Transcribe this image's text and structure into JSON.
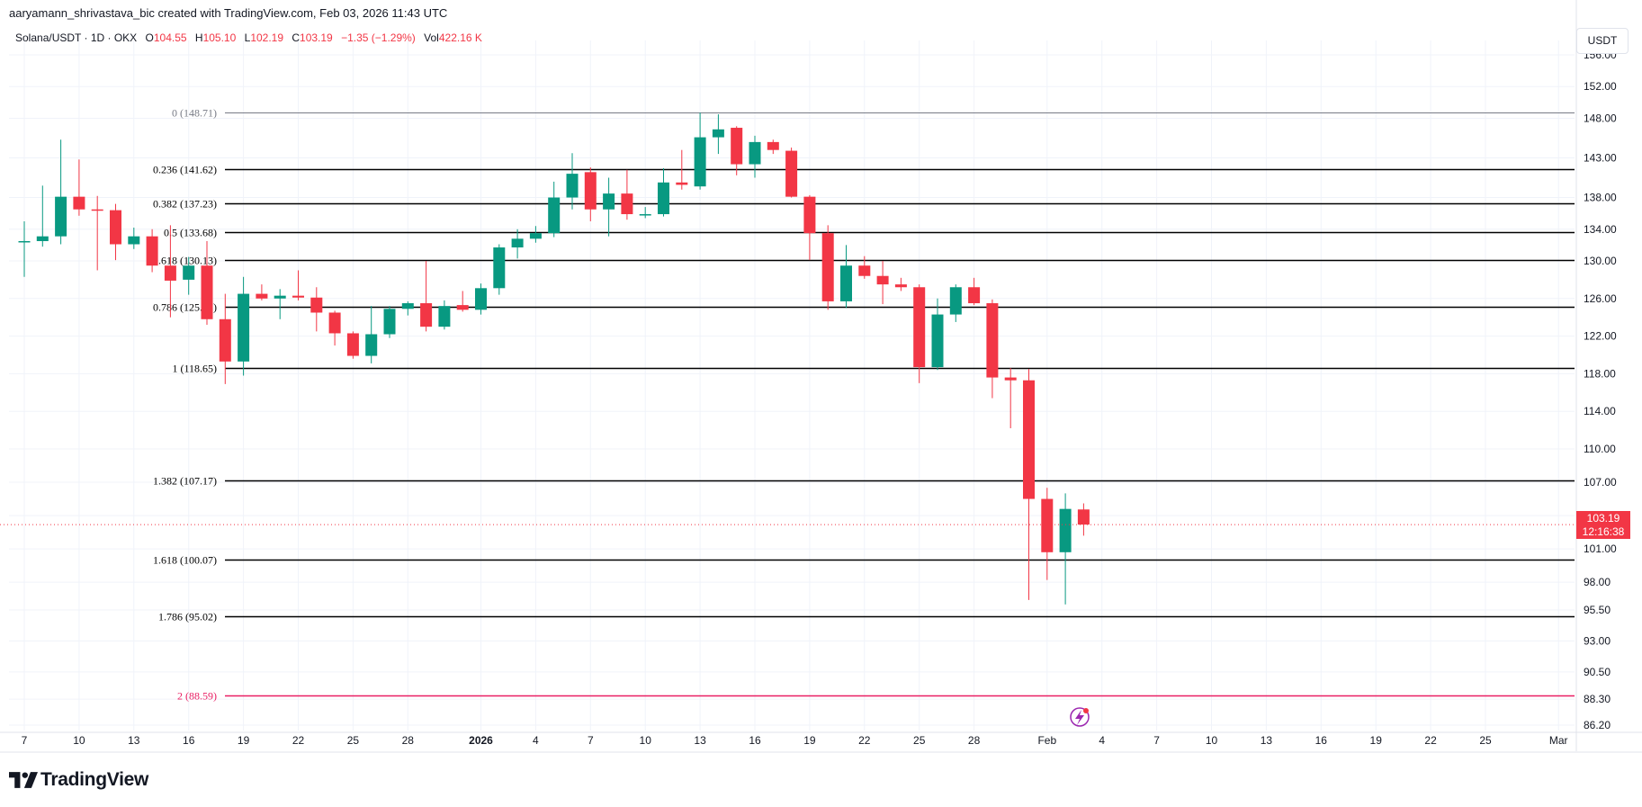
{
  "credit": "aaryamann_shrivastava_bic created with TradingView.com, Feb 03, 2026 11:43 UTC",
  "legend": {
    "symbol": "Solana/USDT · 1D · OKX",
    "o_label": "O",
    "o_value": "104.55",
    "h_label": "H",
    "h_value": "105.10",
    "l_label": "L",
    "l_value": "102.19",
    "c_label": "C",
    "c_value": "103.19",
    "change": "−1.35 (−1.29%)",
    "vol_label": "Vol",
    "vol_value": "422.16 K"
  },
  "currency": "USDT",
  "price_tag": {
    "price": "103.19",
    "countdown": "12:16:38"
  },
  "brand": "TradingView",
  "colors": {
    "up": "#089981",
    "down": "#f23645",
    "fib": "#000000",
    "fib_top": "#787b86",
    "fib_ext": "#e91e63",
    "grid": "#f0f3fa"
  },
  "chart_data": {
    "type": "candlestick",
    "symbol": "Solana/USDT",
    "interval": "1D",
    "y_ticks": [
      "86.20",
      "88.30",
      "90.50",
      "93.00",
      "95.50",
      "98.00",
      "101.00",
      "104.00",
      "107.00",
      "110.00",
      "114.00",
      "118.00",
      "122.00",
      "126.00",
      "130.00",
      "134.00",
      "138.00",
      "143.00",
      "148.00",
      "152.00",
      "156.00"
    ],
    "x_labels": [
      {
        "date": "2025-12-07",
        "label": "7"
      },
      {
        "date": "2025-12-10",
        "label": "10"
      },
      {
        "date": "2025-12-13",
        "label": "13"
      },
      {
        "date": "2025-12-16",
        "label": "16"
      },
      {
        "date": "2025-12-19",
        "label": "19"
      },
      {
        "date": "2025-12-22",
        "label": "22"
      },
      {
        "date": "2025-12-25",
        "label": "25"
      },
      {
        "date": "2025-12-28",
        "label": "28"
      },
      {
        "date": "2026-01-01",
        "label": "2026"
      },
      {
        "date": "2026-01-04",
        "label": "4"
      },
      {
        "date": "2026-01-07",
        "label": "7"
      },
      {
        "date": "2026-01-10",
        "label": "10"
      },
      {
        "date": "2026-01-13",
        "label": "13"
      },
      {
        "date": "2026-01-16",
        "label": "16"
      },
      {
        "date": "2026-01-19",
        "label": "19"
      },
      {
        "date": "2026-01-22",
        "label": "22"
      },
      {
        "date": "2026-01-25",
        "label": "25"
      },
      {
        "date": "2026-01-28",
        "label": "28"
      },
      {
        "date": "2026-02-01",
        "label": "Feb"
      },
      {
        "date": "2026-02-04",
        "label": "4"
      },
      {
        "date": "2026-02-07",
        "label": "7"
      },
      {
        "date": "2026-02-10",
        "label": "10"
      },
      {
        "date": "2026-02-13",
        "label": "13"
      },
      {
        "date": "2026-02-16",
        "label": "16"
      },
      {
        "date": "2026-02-19",
        "label": "19"
      },
      {
        "date": "2026-02-22",
        "label": "22"
      },
      {
        "date": "2026-02-25",
        "label": "25"
      },
      {
        "date": "2026-03-01",
        "label": "Mar"
      }
    ],
    "last_price": 103.19,
    "candles": [
      {
        "date": "2025-12-07",
        "o": 132.4,
        "h": 135.0,
        "l": 128.3,
        "c": 132.5
      },
      {
        "date": "2025-12-08",
        "o": 132.5,
        "h": 139.5,
        "l": 131.8,
        "c": 133.1
      },
      {
        "date": "2025-12-09",
        "o": 133.1,
        "h": 145.3,
        "l": 132.1,
        "c": 138.1
      },
      {
        "date": "2025-12-10",
        "o": 138.1,
        "h": 142.8,
        "l": 135.7,
        "c": 136.5
      },
      {
        "date": "2025-12-11",
        "o": 136.5,
        "h": 138.2,
        "l": 129.0,
        "c": 136.4
      },
      {
        "date": "2025-12-12",
        "o": 136.4,
        "h": 137.2,
        "l": 130.1,
        "c": 132.1
      },
      {
        "date": "2025-12-13",
        "o": 132.1,
        "h": 134.2,
        "l": 131.5,
        "c": 133.1
      },
      {
        "date": "2025-12-14",
        "o": 133.1,
        "h": 134.0,
        "l": 128.8,
        "c": 129.5
      },
      {
        "date": "2025-12-15",
        "o": 129.5,
        "h": 134.5,
        "l": 124.0,
        "c": 127.9
      },
      {
        "date": "2025-12-16",
        "o": 128.0,
        "h": 130.5,
        "l": 126.4,
        "c": 129.5
      },
      {
        "date": "2025-12-17",
        "o": 129.5,
        "h": 132.5,
        "l": 123.2,
        "c": 123.8
      },
      {
        "date": "2025-12-18",
        "o": 123.8,
        "h": 126.5,
        "l": 116.9,
        "c": 119.3
      },
      {
        "date": "2025-12-19",
        "o": 119.3,
        "h": 128.3,
        "l": 117.8,
        "c": 126.5
      },
      {
        "date": "2025-12-20",
        "o": 126.5,
        "h": 127.5,
        "l": 125.8,
        "c": 126.0
      },
      {
        "date": "2025-12-21",
        "o": 126.0,
        "h": 127.0,
        "l": 123.8,
        "c": 126.3
      },
      {
        "date": "2025-12-22",
        "o": 126.3,
        "h": 129.0,
        "l": 125.8,
        "c": 126.1
      },
      {
        "date": "2025-12-23",
        "o": 126.1,
        "h": 127.2,
        "l": 122.5,
        "c": 124.5
      },
      {
        "date": "2025-12-24",
        "o": 124.5,
        "h": 124.7,
        "l": 121.0,
        "c": 122.3
      },
      {
        "date": "2025-12-25",
        "o": 122.3,
        "h": 122.5,
        "l": 119.6,
        "c": 119.9
      },
      {
        "date": "2025-12-26",
        "o": 119.9,
        "h": 125.2,
        "l": 119.1,
        "c": 122.2
      },
      {
        "date": "2025-12-27",
        "o": 122.2,
        "h": 125.2,
        "l": 121.8,
        "c": 124.9
      },
      {
        "date": "2025-12-28",
        "o": 124.9,
        "h": 125.7,
        "l": 124.2,
        "c": 125.5
      },
      {
        "date": "2025-12-29",
        "o": 125.5,
        "h": 130.0,
        "l": 122.5,
        "c": 123.0
      },
      {
        "date": "2025-12-30",
        "o": 123.0,
        "h": 125.8,
        "l": 122.7,
        "c": 125.2
      },
      {
        "date": "2025-12-31",
        "o": 125.3,
        "h": 126.8,
        "l": 124.6,
        "c": 124.8
      },
      {
        "date": "2026-01-01",
        "o": 124.8,
        "h": 127.6,
        "l": 124.3,
        "c": 127.1
      },
      {
        "date": "2026-01-02",
        "o": 127.1,
        "h": 132.1,
        "l": 126.4,
        "c": 131.7
      },
      {
        "date": "2026-01-03",
        "o": 131.7,
        "h": 134.0,
        "l": 130.3,
        "c": 132.8
      },
      {
        "date": "2026-01-04",
        "o": 132.8,
        "h": 134.4,
        "l": 132.3,
        "c": 133.5
      },
      {
        "date": "2026-01-05",
        "o": 133.5,
        "h": 140.0,
        "l": 133.0,
        "c": 138.0
      },
      {
        "date": "2026-01-06",
        "o": 138.0,
        "h": 143.6,
        "l": 136.5,
        "c": 141.0
      },
      {
        "date": "2026-01-07",
        "o": 141.2,
        "h": 141.8,
        "l": 135.0,
        "c": 136.5
      },
      {
        "date": "2026-01-08",
        "o": 136.5,
        "h": 140.5,
        "l": 133.1,
        "c": 138.5
      },
      {
        "date": "2026-01-09",
        "o": 138.5,
        "h": 141.5,
        "l": 135.2,
        "c": 135.9
      },
      {
        "date": "2026-01-10",
        "o": 135.9,
        "h": 136.8,
        "l": 135.4,
        "c": 135.9
      },
      {
        "date": "2026-01-11",
        "o": 135.9,
        "h": 141.7,
        "l": 135.6,
        "c": 139.9
      },
      {
        "date": "2026-01-12",
        "o": 139.9,
        "h": 144.0,
        "l": 139.0,
        "c": 139.6
      },
      {
        "date": "2026-01-13",
        "o": 139.4,
        "h": 148.7,
        "l": 139.0,
        "c": 145.6
      },
      {
        "date": "2026-01-14",
        "o": 145.6,
        "h": 148.5,
        "l": 143.5,
        "c": 146.6
      },
      {
        "date": "2026-01-15",
        "o": 146.8,
        "h": 147.0,
        "l": 140.8,
        "c": 142.2
      },
      {
        "date": "2026-01-16",
        "o": 142.2,
        "h": 145.8,
        "l": 140.5,
        "c": 145.0
      },
      {
        "date": "2026-01-17",
        "o": 145.0,
        "h": 145.3,
        "l": 143.5,
        "c": 144.0
      },
      {
        "date": "2026-01-18",
        "o": 143.9,
        "h": 144.3,
        "l": 138.0,
        "c": 138.1
      },
      {
        "date": "2026-01-19",
        "o": 138.1,
        "h": 138.3,
        "l": 130.1,
        "c": 133.5
      },
      {
        "date": "2026-01-20",
        "o": 133.5,
        "h": 134.5,
        "l": 124.8,
        "c": 125.7
      },
      {
        "date": "2026-01-21",
        "o": 125.7,
        "h": 132.0,
        "l": 125.0,
        "c": 129.5
      },
      {
        "date": "2026-01-22",
        "o": 129.5,
        "h": 130.6,
        "l": 128.1,
        "c": 128.4
      },
      {
        "date": "2026-01-23",
        "o": 128.4,
        "h": 130.0,
        "l": 125.4,
        "c": 127.5
      },
      {
        "date": "2026-01-24",
        "o": 127.5,
        "h": 128.2,
        "l": 126.8,
        "c": 127.2
      },
      {
        "date": "2026-01-25",
        "o": 127.2,
        "h": 127.5,
        "l": 117.0,
        "c": 118.7
      },
      {
        "date": "2026-01-26",
        "o": 118.7,
        "h": 126.0,
        "l": 118.4,
        "c": 124.3
      },
      {
        "date": "2026-01-27",
        "o": 124.3,
        "h": 127.5,
        "l": 123.5,
        "c": 127.2
      },
      {
        "date": "2026-01-28",
        "o": 127.2,
        "h": 128.2,
        "l": 125.3,
        "c": 125.5
      },
      {
        "date": "2026-01-29",
        "o": 125.5,
        "h": 125.9,
        "l": 115.4,
        "c": 117.6
      },
      {
        "date": "2026-01-30",
        "o": 117.6,
        "h": 118.6,
        "l": 112.2,
        "c": 117.3
      },
      {
        "date": "2026-01-31",
        "o": 117.3,
        "h": 118.5,
        "l": 96.4,
        "c": 105.5
      },
      {
        "date": "2026-02-01",
        "o": 105.5,
        "h": 106.5,
        "l": 98.2,
        "c": 100.7
      },
      {
        "date": "2026-02-02",
        "o": 100.7,
        "h": 106.0,
        "l": 96.0,
        "c": 104.6
      },
      {
        "date": "2026-02-03",
        "o": 104.55,
        "h": 105.1,
        "l": 102.19,
        "c": 103.19
      }
    ],
    "fib_levels": [
      {
        "ratio": "0",
        "price": 148.71,
        "label": "0 (148.71)"
      },
      {
        "ratio": "0.236",
        "price": 141.62,
        "label": "0.236 (141.62)"
      },
      {
        "ratio": "0.382",
        "price": 137.23,
        "label": "0.382 (137.23)"
      },
      {
        "ratio": "0.5",
        "price": 133.68,
        "label": "0.5 (133.68)"
      },
      {
        "ratio": "0.618",
        "price": 130.13,
        "label": "0.618 (130.13)"
      },
      {
        "ratio": "0.786",
        "price": 125.08,
        "label": "0.786 (125.08)"
      },
      {
        "ratio": "1",
        "price": 118.65,
        "label": "1 (118.65)"
      },
      {
        "ratio": "1.382",
        "price": 107.17,
        "label": "1.382 (107.17)"
      },
      {
        "ratio": "1.618",
        "price": 100.07,
        "label": "1.618 (100.07)"
      },
      {
        "ratio": "1.786",
        "price": 95.02,
        "label": "1.786 (95.02)"
      },
      {
        "ratio": "2",
        "price": 88.59,
        "label": "2 (88.59)"
      }
    ],
    "grid": true,
    "legend_position": "top-left"
  }
}
